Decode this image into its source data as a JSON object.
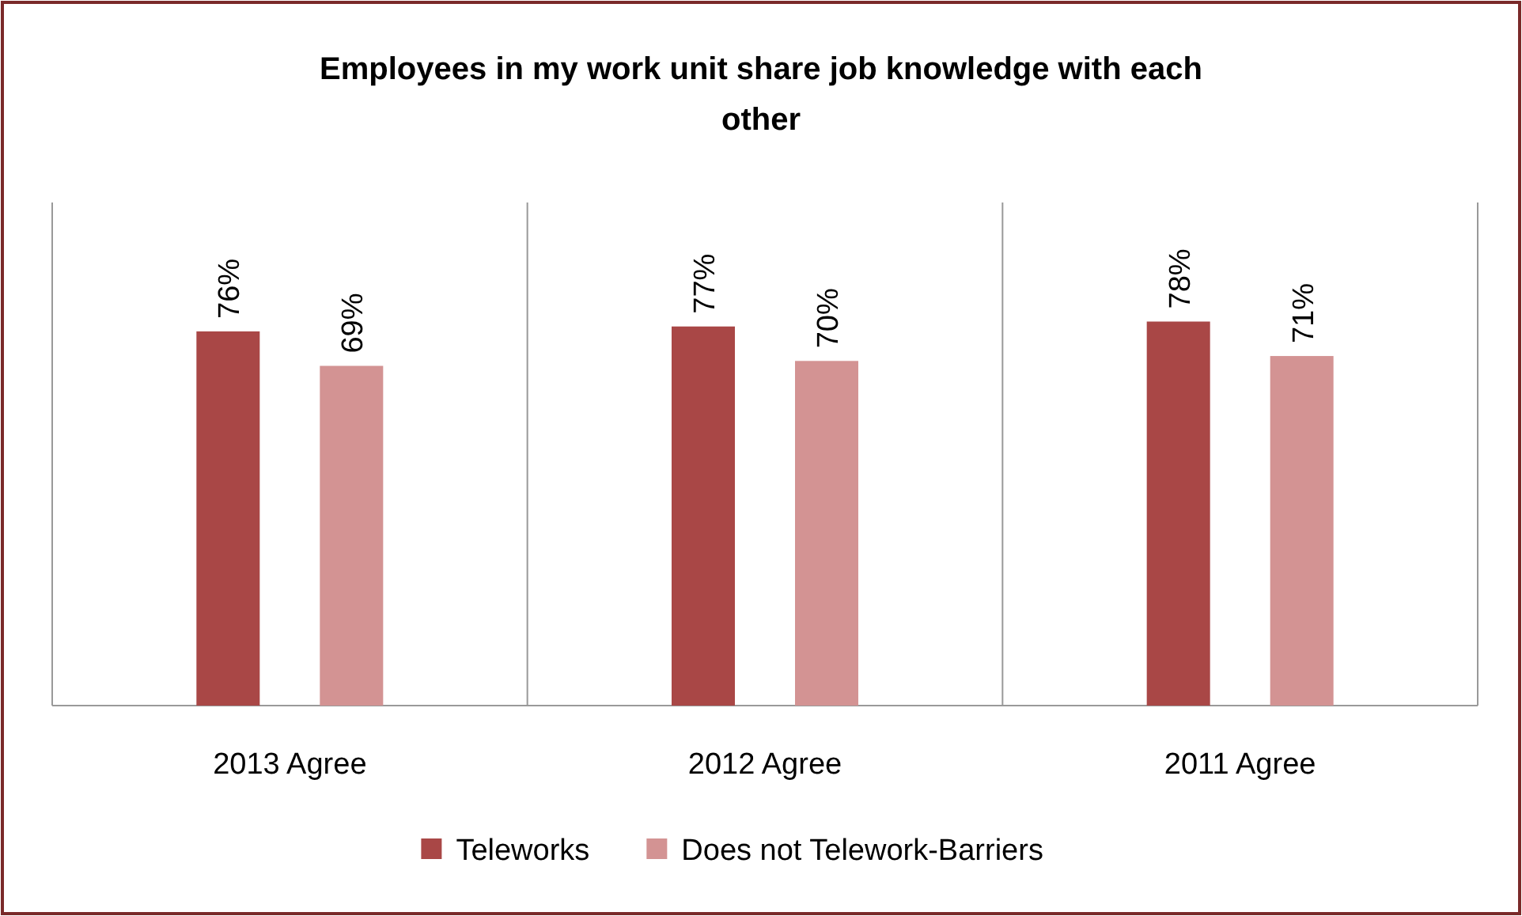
{
  "chart_data": {
    "type": "bar",
    "title": "Employees in my work unit share job knowledge with each other",
    "categories": [
      "2013 Agree",
      "2012 Agree",
      "2011 Agree"
    ],
    "series": [
      {
        "name": "Teleworks",
        "color": "#a94746",
        "values": [
          76,
          77,
          78
        ],
        "value_labels": [
          "76%",
          "77%",
          "78%"
        ]
      },
      {
        "name": "Does not Telework-Barriers",
        "color": "#d39393",
        "values": [
          69,
          70,
          71
        ],
        "value_labels": [
          "69%",
          "70%",
          "71%"
        ]
      }
    ],
    "tick_labels": "x",
    "legend": "bottom"
  }
}
